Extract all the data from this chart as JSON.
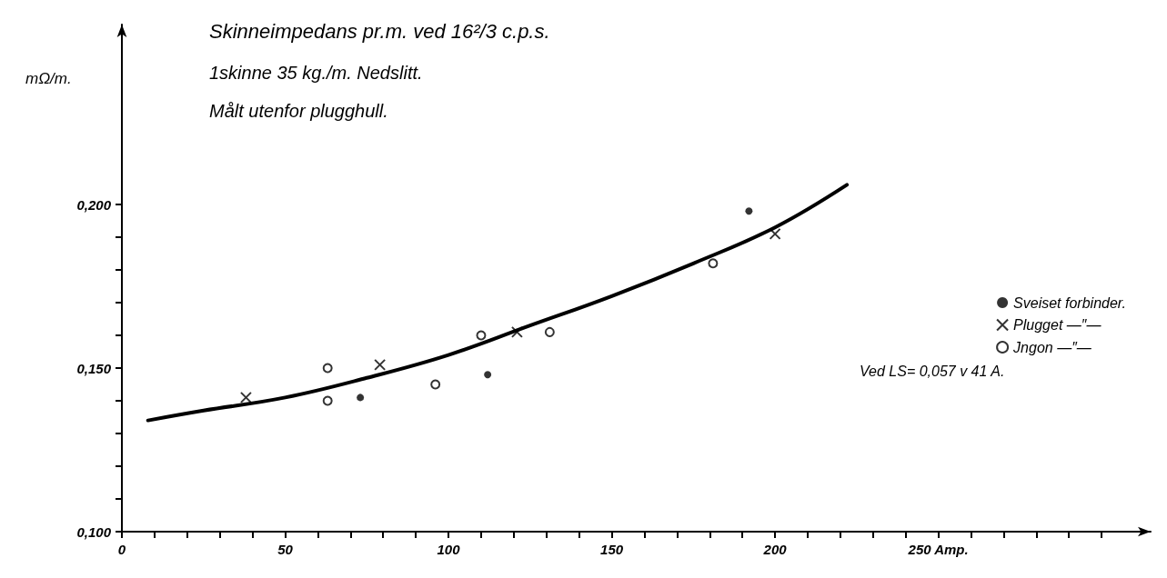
{
  "chart_data": {
    "type": "scatter",
    "title": "Skinneimpedans pr.m. ved 16²/3 c.p.s.",
    "subtitle": "1skinne 35 kg./m. Nedslitt.",
    "ylabel": "mΩ/m.",
    "annotations": [
      "Målt utenfor plugghull.",
      "Ved LS= 0,057 v 41 A."
    ],
    "xlim": [
      0,
      315
    ],
    "ylim": [
      0.1,
      0.255
    ],
    "xticks": [
      0,
      {
        "value": 10,
        "label": null
      },
      {
        "value": 20,
        "label": null
      },
      {
        "value": 30,
        "label": null
      },
      {
        "value": 40,
        "label": null
      },
      50,
      {
        "value": 60,
        "label": null
      },
      {
        "value": 70,
        "label": null
      },
      {
        "value": 80,
        "label": null
      },
      {
        "value": 90,
        "label": null
      },
      100,
      {
        "value": 110,
        "label": null
      },
      {
        "value": 120,
        "label": null
      },
      {
        "value": 130,
        "label": null
      },
      {
        "value": 140,
        "label": null
      },
      150,
      {
        "value": 160,
        "label": null
      },
      {
        "value": 170,
        "label": null
      },
      {
        "value": 180,
        "label": null
      },
      {
        "value": 190,
        "label": null
      },
      200,
      {
        "value": 210,
        "label": null
      },
      {
        "value": 220,
        "label": null
      },
      {
        "value": 230,
        "label": null
      },
      {
        "value": 240,
        "label": null
      },
      {
        "value": 250,
        "label": "250 Amp."
      },
      {
        "value": 260,
        "label": null
      },
      {
        "value": 270,
        "label": null
      },
      {
        "value": 280,
        "label": null
      },
      {
        "value": 290,
        "label": null
      },
      {
        "value": 300,
        "label": null
      }
    ],
    "yticks": [
      {
        "value": 0.1,
        "label": "0,100"
      },
      {
        "value": 0.11,
        "label": null
      },
      {
        "value": 0.12,
        "label": null
      },
      {
        "value": 0.13,
        "label": null
      },
      {
        "value": 0.14,
        "label": null
      },
      {
        "value": 0.15,
        "label": "0,150"
      },
      {
        "value": 0.16,
        "label": null
      },
      {
        "value": 0.17,
        "label": null
      },
      {
        "value": 0.18,
        "label": null
      },
      {
        "value": 0.19,
        "label": null
      },
      {
        "value": 0.2,
        "label": "0,200"
      }
    ],
    "grid": false,
    "legend": "right",
    "series": [
      {
        "name": "Sveiset forbinder.",
        "color": "#000000",
        "marker": "circle",
        "x": [
          73,
          112,
          192
        ],
        "values": [
          0.141,
          0.148,
          0.198
        ]
      },
      {
        "name": "Plugget —″—",
        "color": "#000000",
        "marker": "cross",
        "x": [
          38,
          79,
          121,
          200
        ],
        "values": [
          0.141,
          0.151,
          0.161,
          0.191
        ]
      },
      {
        "name": "Jngon —″—",
        "color": "#000000",
        "marker": "open circle",
        "x": [
          63,
          63,
          96,
          110,
          131,
          181
        ],
        "values": [
          0.15,
          0.14,
          0.145,
          0.16,
          0.161,
          0.182
        ]
      },
      {
        "type": "line",
        "color": "#000000",
        "marker": "none",
        "line_style": "solid",
        "x": [
          8,
          25,
          50,
          75,
          100,
          125,
          150,
          175,
          200,
          222
        ],
        "values": [
          0.134,
          0.137,
          0.141,
          0.147,
          0.154,
          0.163,
          0.172,
          0.182,
          0.193,
          0.206
        ]
      }
    ]
  }
}
